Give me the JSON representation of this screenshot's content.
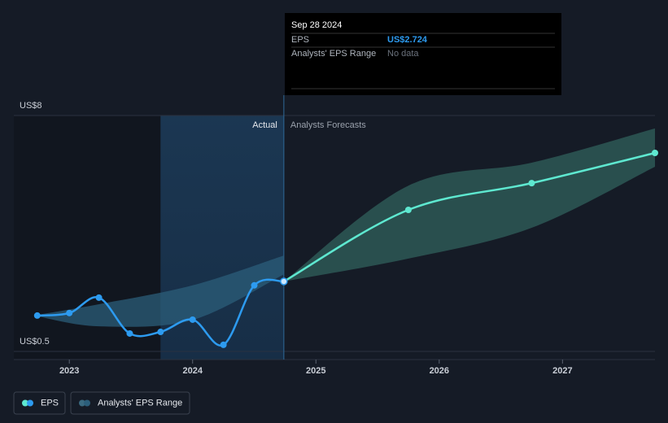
{
  "chart_data": {
    "type": "line",
    "xlim": [
      2022.55,
      2027.75
    ],
    "xticks": [
      2023,
      2024,
      2025,
      2026,
      2027
    ],
    "ylim": [
      0.5,
      8
    ],
    "yticks": [
      {
        "value": 0.5,
        "label": "US$0.5"
      },
      {
        "value": 8,
        "label": "US$8"
      }
    ],
    "divider_x": 2024.74,
    "highlight_start": 2023.74,
    "actual_label": "Actual",
    "forecast_label": "Analysts Forecasts",
    "series": [
      {
        "name": "EPS",
        "color": "#2d9bf0",
        "x": [
          2022.74,
          2023.0,
          2023.24,
          2023.49,
          2023.74,
          2024.0,
          2024.25,
          2024.5,
          2024.74
        ],
        "values": [
          1.64,
          1.72,
          2.21,
          1.07,
          1.12,
          1.51,
          0.71,
          2.6,
          2.724
        ]
      },
      {
        "name": "Analysts' EPS Range",
        "color": "#2b5e7a",
        "x": [
          2022.74,
          2023.24,
          2024.0,
          2024.74
        ],
        "high": [
          1.66,
          2.0,
          2.6,
          3.55
        ],
        "low": [
          1.62,
          1.3,
          1.5,
          2.95
        ]
      }
    ],
    "forecast": {
      "color": "#5ee8d0",
      "x": [
        2024.74,
        2025.75,
        2026.75,
        2027.75
      ],
      "values": [
        2.724,
        5.0,
        5.85,
        6.81
      ],
      "high": [
        2.724,
        5.77,
        6.5,
        7.59
      ],
      "low": [
        2.724,
        3.45,
        4.43,
        6.37
      ]
    },
    "tooltip": {
      "date": "Sep 28 2024",
      "rows": [
        {
          "label": "EPS",
          "text": "US$2.724"
        },
        {
          "label": "Analysts' EPS Range",
          "text": "No data"
        }
      ]
    }
  }
}
